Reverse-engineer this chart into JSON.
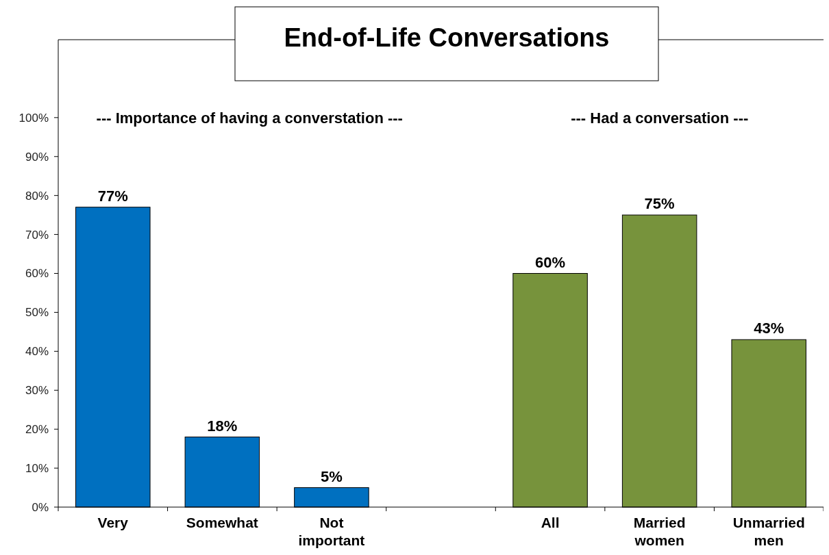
{
  "chart_data": {
    "type": "bar",
    "title": "End-of-Life Conversations",
    "categories": [
      "Very",
      "Somewhat",
      "Not important",
      null,
      "All",
      "Married women",
      "Unmarried men"
    ],
    "values": [
      77,
      18,
      5,
      null,
      60,
      75,
      43
    ],
    "colors": [
      "#0070c0",
      "#0070c0",
      "#0070c0",
      null,
      "#77933c",
      "#77933c",
      "#77933c"
    ],
    "ylim": [
      0,
      120
    ],
    "yticks": [
      {
        "value": 0,
        "label": "0%"
      },
      {
        "value": 10,
        "label": "10%"
      },
      {
        "value": 20,
        "label": "20%"
      },
      {
        "value": 30,
        "label": "30%"
      },
      {
        "value": 40,
        "label": "40%"
      },
      {
        "value": 50,
        "label": "50%"
      },
      {
        "value": 60,
        "label": "60%"
      },
      {
        "value": 70,
        "label": "70%"
      },
      {
        "value": 80,
        "label": "80%"
      },
      {
        "value": 90,
        "label": "90%"
      },
      {
        "value": 100,
        "label": "100%"
      }
    ],
    "value_labels": [
      "77%",
      "18%",
      "5%",
      null,
      "60%",
      "75%",
      "43%"
    ],
    "annotations": [
      "--- Importance of having a converstation ---",
      "--- Had a conversation ---"
    ],
    "grid": false
  }
}
